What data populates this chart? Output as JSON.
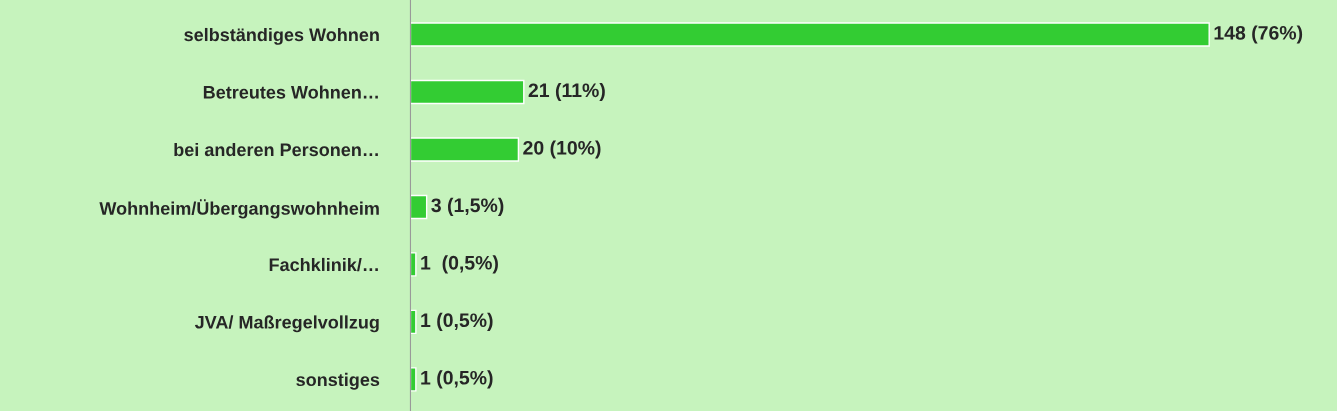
{
  "chart_data": {
    "type": "bar",
    "orientation": "horizontal",
    "categories": [
      "selbständiges Wohnen",
      "Betreutes Wohnen…",
      "bei anderen Personen…",
      "Wohnheim/Übergangswohnheim",
      "Fachklinik/…",
      "JVA/ Maßregelvollzug",
      "sonstiges"
    ],
    "values": [
      148,
      21,
      20,
      3,
      1,
      1,
      1
    ],
    "value_labels": [
      "148 (76%)",
      "21 (11%)",
      "20 (10%)",
      "3 (1,5%)",
      "1  (0,5%)",
      "1 (0,5%)",
      "1 (0,5%)"
    ],
    "color": "#33cc33",
    "grid": false,
    "legend": false,
    "tick_labels": "y"
  }
}
